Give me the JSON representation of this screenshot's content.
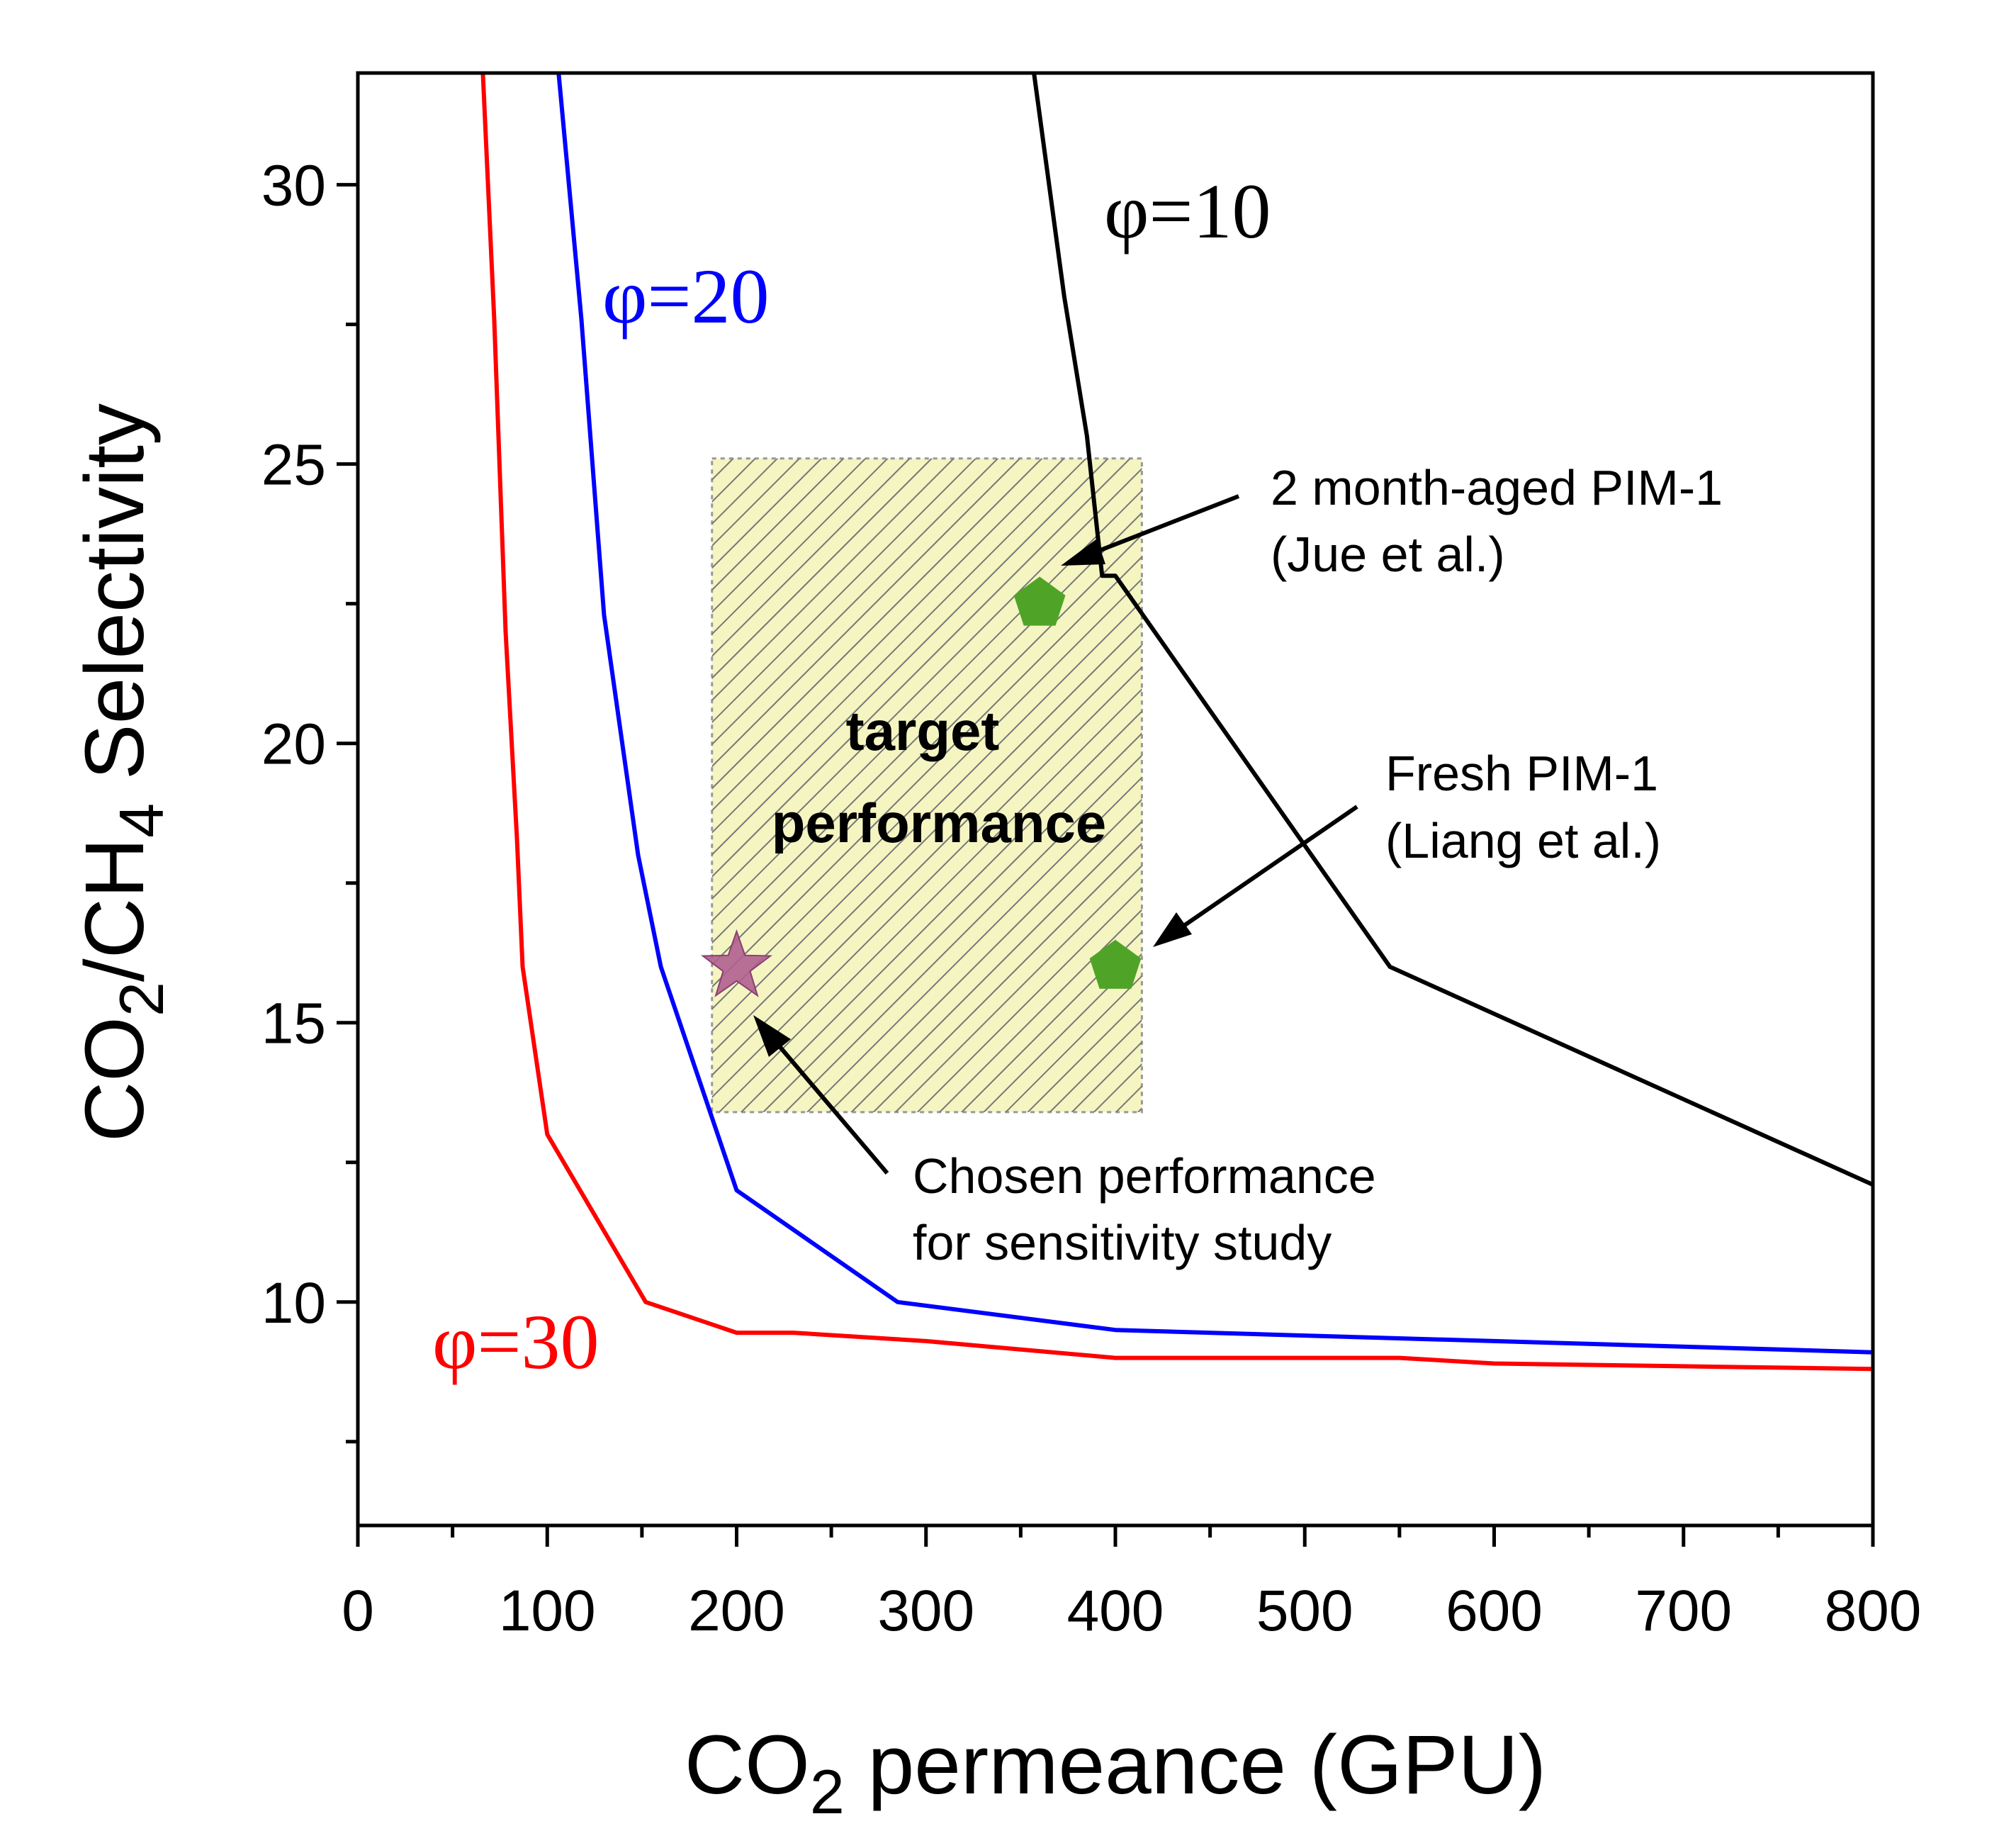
{
  "chart_data": {
    "type": "line",
    "title": "",
    "xlabel": {
      "main": "CO",
      "sub": "2",
      "rest": " permeance (GPU)"
    },
    "ylabel": {
      "p1": "CO",
      "s1": "2",
      "p2": "/CH",
      "s2": "4",
      "p3": " Selectivity"
    },
    "xlim": [
      0,
      800
    ],
    "ylim": [
      6,
      32
    ],
    "x_ticks": [
      0,
      100,
      200,
      300,
      400,
      500,
      600,
      700,
      800
    ],
    "y_ticks": [
      10,
      15,
      20,
      25,
      30
    ],
    "series": [
      {
        "name": "φ=10",
        "color": "#000000",
        "points": [
          [
            357,
            32
          ],
          [
            373,
            28
          ],
          [
            385,
            25.5
          ],
          [
            393,
            23
          ],
          [
            400,
            23
          ],
          [
            545,
            16
          ],
          [
            800,
            12.1
          ]
        ]
      },
      {
        "name": "φ=20",
        "color": "#0000ff",
        "points": [
          [
            106,
            32
          ],
          [
            118,
            27.6
          ],
          [
            130,
            22.3
          ],
          [
            148,
            18
          ],
          [
            160,
            16
          ],
          [
            200,
            12
          ],
          [
            285,
            10
          ],
          [
            400,
            9.5
          ],
          [
            500,
            9.4
          ],
          [
            600,
            9.3
          ],
          [
            800,
            9.1
          ]
        ]
      },
      {
        "name": "φ=30",
        "color": "#ff0000",
        "points": [
          [
            66,
            32
          ],
          [
            72,
            27.6
          ],
          [
            78,
            22
          ],
          [
            84,
            18.3
          ],
          [
            87,
            16
          ],
          [
            100,
            13
          ],
          [
            152,
            10
          ],
          [
            200,
            9.45
          ],
          [
            230,
            9.45
          ],
          [
            300,
            9.3
          ],
          [
            400,
            9.0
          ],
          [
            550,
            9.0
          ],
          [
            600,
            8.9
          ],
          [
            700,
            8.85
          ],
          [
            800,
            8.8
          ]
        ]
      }
    ],
    "series_labels": [
      {
        "text": "φ=10",
        "color": "#000000"
      },
      {
        "text": "φ=20",
        "color": "#0000ff"
      },
      {
        "text": "φ=30",
        "color": "#ff0000"
      }
    ],
    "target_region": {
      "x_range": [
        187,
        414
      ],
      "y_range": [
        13.4,
        25.1
      ],
      "label_line1": "target",
      "label_line2": "performance",
      "fill": "#f5f5c2"
    },
    "markers": [
      {
        "name": "2 month-aged PIM-1",
        "shape": "pentagon",
        "x": 360,
        "y": 22.5,
        "color": "#4fa428"
      },
      {
        "name": "Fresh PIM-1",
        "shape": "pentagon",
        "x": 400,
        "y": 16,
        "color": "#4fa428"
      },
      {
        "name": "Chosen performance",
        "shape": "star",
        "x": 200,
        "y": 16,
        "color": "#b06090"
      }
    ],
    "annotations": [
      {
        "line1": "2 month-aged PIM-1",
        "line2": "(Jue et al.)"
      },
      {
        "line1": "Fresh PIM-1",
        "line2": "(Liang et al.)"
      },
      {
        "line1": "Chosen performance",
        "line2": "for sensitivity study"
      }
    ]
  }
}
